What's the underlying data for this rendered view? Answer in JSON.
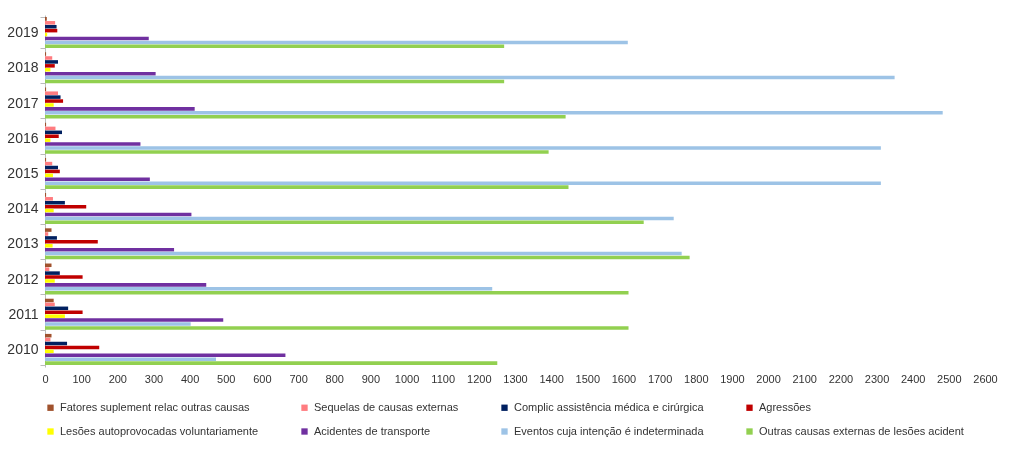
{
  "chart_data": {
    "type": "bar",
    "orientation": "horizontal",
    "categories": [
      "2019",
      "2018",
      "2017",
      "2016",
      "2015",
      "2014",
      "2013",
      "2012",
      "2011",
      "2010"
    ],
    "series": [
      {
        "name": "Fatores suplement relac outras causas",
        "color": "#a0522d",
        "values": [
          5,
          3,
          3,
          3,
          3,
          3,
          18,
          18,
          24,
          18
        ]
      },
      {
        "name": "Sequelas de causas externas",
        "color": "#ff7c80",
        "values": [
          28,
          20,
          36,
          29,
          20,
          22,
          9,
          12,
          27,
          15
        ]
      },
      {
        "name": "Complic assistência médica e cirúrgica",
        "color": "#002060",
        "values": [
          32,
          36,
          43,
          47,
          36,
          55,
          33,
          41,
          64,
          61
        ]
      },
      {
        "name": "Agressões",
        "color": "#c00000",
        "values": [
          34,
          27,
          50,
          38,
          41,
          114,
          146,
          104,
          104,
          150
        ]
      },
      {
        "name": "Lesões autoprovocadas voluntariamente",
        "color": "#ffff00",
        "values": [
          6,
          15,
          24,
          15,
          22,
          24,
          21,
          27,
          55,
          24
        ]
      },
      {
        "name": "Acidentes de transporte",
        "color": "#7030a0",
        "values": [
          287,
          306,
          414,
          264,
          290,
          405,
          357,
          446,
          493,
          665
        ]
      },
      {
        "name": "Eventos cuja intenção é indeterminada",
        "color": "#9dc3e6",
        "values": [
          1612,
          2350,
          2483,
          2312,
          2312,
          1739,
          1761,
          1237,
          403,
          473
        ]
      },
      {
        "name": "Outras causas externas de lesões acident",
        "color": "#92d050",
        "values": [
          1270,
          1270,
          1440,
          1393,
          1448,
          1656,
          1783,
          1614,
          1614,
          1251
        ]
      }
    ],
    "xlim": [
      0,
      2600
    ],
    "xticks": [
      0,
      100,
      200,
      300,
      400,
      500,
      600,
      700,
      800,
      900,
      1000,
      1100,
      1200,
      1300,
      1400,
      1500,
      1600,
      1700,
      1800,
      1900,
      2000,
      2100,
      2200,
      2300,
      2400,
      2500,
      2600
    ],
    "legend": "bottom"
  }
}
